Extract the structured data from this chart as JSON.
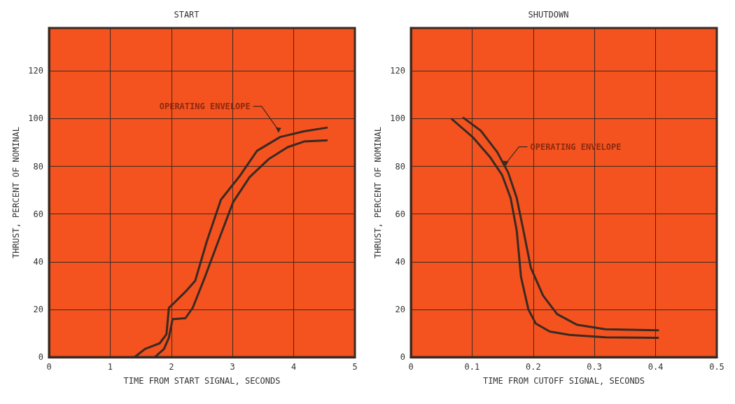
{
  "chart_data": [
    {
      "type": "line",
      "title": "START",
      "xlabel": "TIME FROM START SIGNAL, SECONDS",
      "ylabel": "THRUST, PERCENT OF NOMINAL",
      "xlim": [
        0,
        5
      ],
      "xticks": [
        0,
        1,
        2,
        3,
        4,
        5
      ],
      "ylim": [
        0,
        138
      ],
      "yticks": [
        0,
        20,
        40,
        60,
        80,
        100,
        120
      ],
      "grid": true,
      "marker": "none",
      "line_style": "solid",
      "annotations": [
        {
          "text": "OPERATING ENVELOPE",
          "x": 3.75,
          "y": 94
        }
      ],
      "series": [
        {
          "color": "#3a2a22",
          "x": [
            1.4,
            1.57,
            1.81,
            1.92,
            1.96,
            2.04,
            2.23,
            2.39,
            2.58,
            2.81,
            3.12,
            3.4,
            3.78,
            4.17,
            4.54
          ],
          "values": [
            0,
            3.4,
            5.8,
            9.6,
            20.7,
            22.6,
            27.4,
            32,
            48.6,
            66,
            76,
            86.5,
            92.3,
            94.7,
            96.2
          ]
        },
        {
          "color": "#3a2a22",
          "x": [
            1.73,
            1.88,
            1.96,
            2.02,
            2.23,
            2.35,
            2.54,
            2.78,
            3.01,
            3.28,
            3.59,
            3.9,
            4.17,
            4.54
          ],
          "values": [
            0,
            3.4,
            8.2,
            15.9,
            16.3,
            20.7,
            33,
            49.5,
            65,
            75.5,
            83,
            88,
            90.4,
            90.9
          ]
        }
      ]
    },
    {
      "type": "line",
      "title": "SHUTDOWN",
      "xlabel": "TIME FROM CUTOFF SIGNAL, SECONDS",
      "ylabel": "THRUST, PERCENT OF NOMINAL",
      "xlim": [
        0,
        0.5
      ],
      "xticks": [
        0,
        0.1,
        0.2,
        0.3,
        0.4,
        0.5
      ],
      "ylim": [
        0,
        138
      ],
      "yticks": [
        0,
        20,
        40,
        60,
        80,
        100,
        120
      ],
      "grid": true,
      "marker": "none",
      "line_style": "solid",
      "annotations": [
        {
          "text": "OPERATING ENVELOPE",
          "x": 0.155,
          "y": 80
        }
      ],
      "series": [
        {
          "color": "#3a2a22",
          "x": [
            0.067,
            0.102,
            0.129,
            0.149,
            0.163,
            0.173,
            0.18,
            0.192,
            0.204,
            0.227,
            0.259,
            0.318,
            0.404
          ],
          "values": [
            99.8,
            92,
            84,
            76.4,
            66.7,
            53,
            33.6,
            20,
            14.1,
            10.7,
            9.3,
            8.3,
            8.1
          ]
        },
        {
          "color": "#3a2a22",
          "x": [
            0.086,
            0.114,
            0.141,
            0.159,
            0.173,
            0.184,
            0.196,
            0.216,
            0.239,
            0.271,
            0.318,
            0.404
          ],
          "values": [
            100.3,
            95,
            86,
            77.4,
            66.7,
            53,
            37.5,
            25.8,
            18,
            13.6,
            11.7,
            11.2
          ]
        }
      ]
    }
  ]
}
